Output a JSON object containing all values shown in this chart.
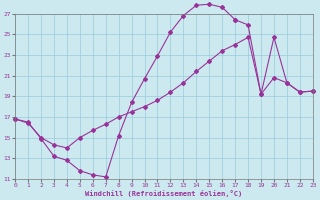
{
  "bg_color": "#cce9ef",
  "grid_color": "#99ccdd",
  "line_color": "#993399",
  "xlabel": "Windchill (Refroidissement éolien,°C)",
  "xticks": [
    0,
    1,
    2,
    3,
    4,
    5,
    6,
    7,
    8,
    9,
    10,
    11,
    12,
    13,
    14,
    15,
    16,
    17,
    18,
    19,
    20,
    21,
    22,
    23
  ],
  "yticks": [
    11,
    13,
    15,
    17,
    19,
    21,
    23,
    25,
    27
  ],
  "xlim": [
    0,
    23
  ],
  "ylim": [
    11,
    27
  ],
  "curve1_x": [
    0,
    1,
    2,
    3,
    4,
    5,
    6,
    7,
    8,
    9,
    10,
    11,
    12,
    13,
    14,
    15,
    16,
    17
  ],
  "curve1_y": [
    16.8,
    16.5,
    14.9,
    13.2,
    12.8,
    11.8,
    11.4,
    11.2,
    15.2,
    18.4,
    20.7,
    22.9,
    25.2,
    26.8,
    27.8,
    27.9,
    27.6,
    26.4
  ],
  "curve2_x": [
    0,
    1,
    2,
    3,
    4,
    5,
    6,
    7,
    8,
    9,
    10,
    11,
    12,
    13,
    14,
    15,
    16,
    17,
    18,
    19,
    20,
    21,
    22,
    23
  ],
  "curve2_y": [
    16.8,
    16.4,
    15.0,
    14.3,
    14.0,
    15.0,
    15.7,
    16.3,
    17.0,
    17.5,
    18.0,
    18.6,
    19.4,
    20.3,
    21.4,
    22.4,
    23.4,
    24.0,
    24.7,
    19.2,
    20.8,
    20.3,
    19.4,
    19.5
  ],
  "curve3_x": [
    17,
    18,
    19,
    20,
    21,
    22,
    23
  ],
  "curve3_y": [
    26.4,
    25.9,
    19.2,
    24.7,
    20.3,
    19.4,
    19.5
  ]
}
